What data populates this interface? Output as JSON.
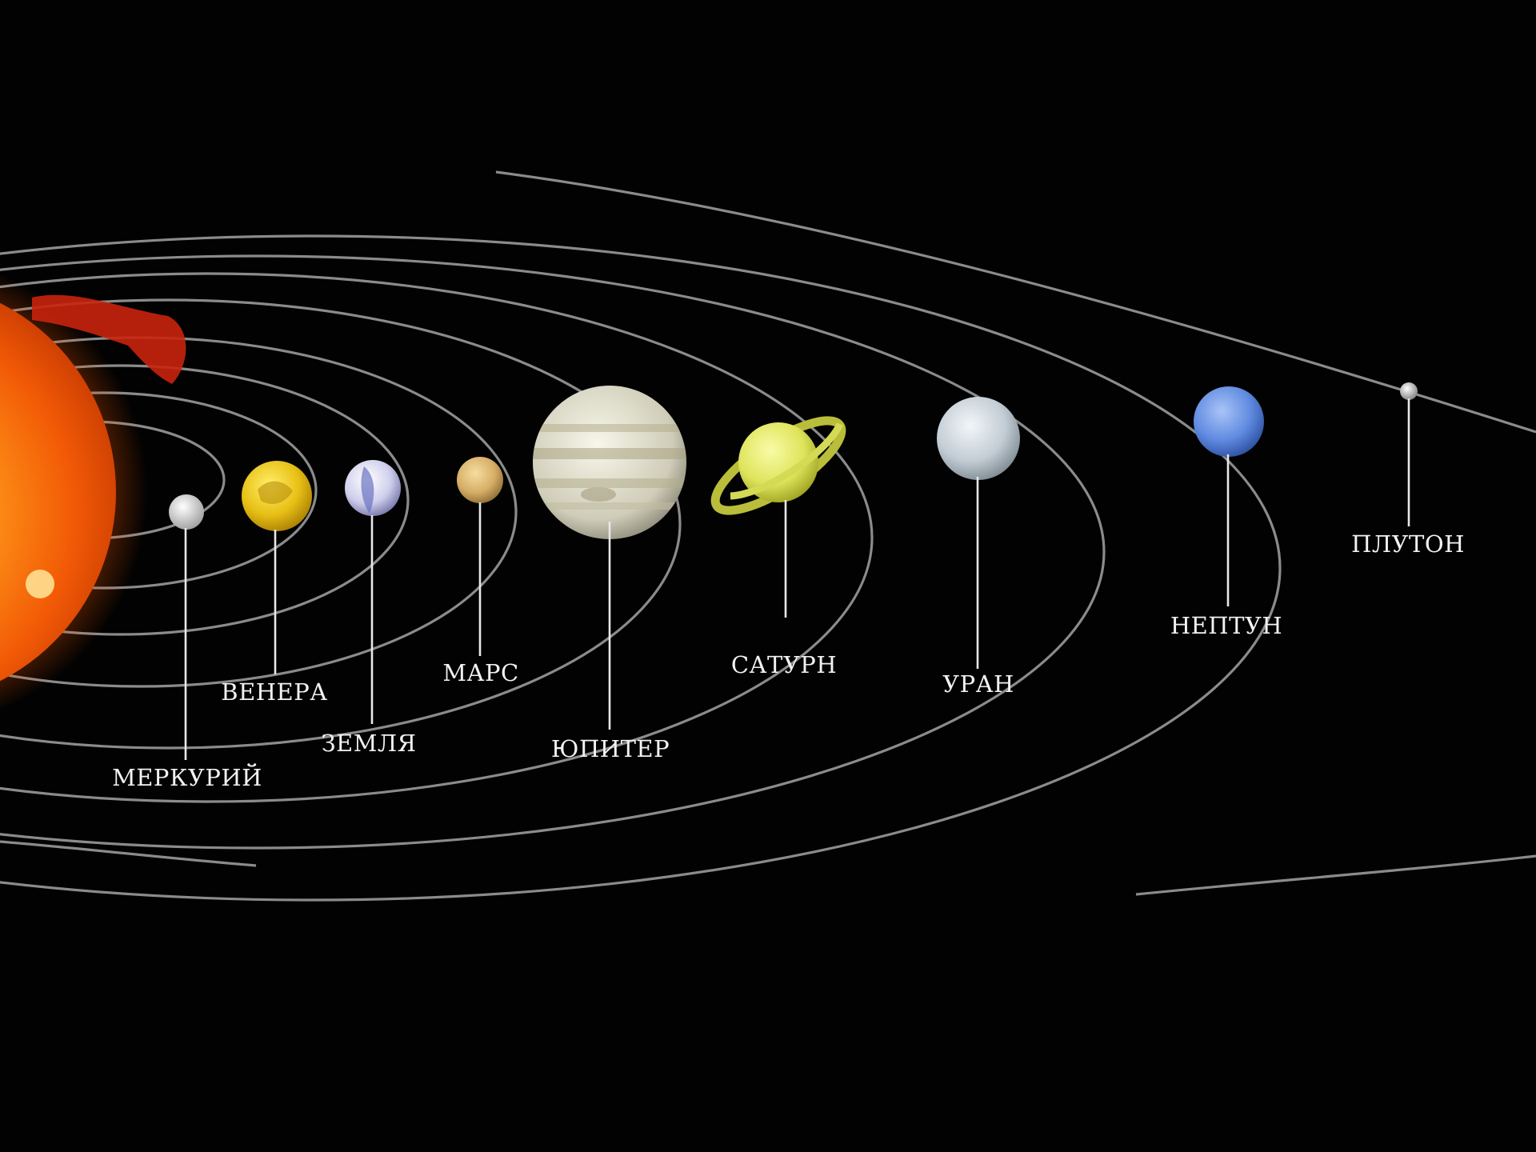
{
  "diagram": {
    "type": "solar-system",
    "planets": [
      {
        "key": "mercury",
        "label": "МЕРКУРИЙ",
        "color": "#e2e2e2"
      },
      {
        "key": "venus",
        "label": "ВЕНЕРА",
        "color": "#e8c21a"
      },
      {
        "key": "earth",
        "label": "ЗЕМЛЯ",
        "color": "#c9c9e6"
      },
      {
        "key": "mars",
        "label": "МАРС",
        "color": "#d8b36a"
      },
      {
        "key": "jupiter",
        "label": "ЮПИТЕР",
        "color": "#d6d4c2"
      },
      {
        "key": "saturn",
        "label": "САТУРН",
        "color": "#dfe36b"
      },
      {
        "key": "uranus",
        "label": "УРАН",
        "color": "#c9d2d9"
      },
      {
        "key": "neptune",
        "label": "НЕПТУН",
        "color": "#6d94df"
      },
      {
        "key": "pluto",
        "label": "ПЛУТОН",
        "color": "#bcbcbc"
      }
    ],
    "sun_color": "#f26a0a",
    "orbit_color": "#9a9a9a",
    "background_color": "#020202"
  }
}
